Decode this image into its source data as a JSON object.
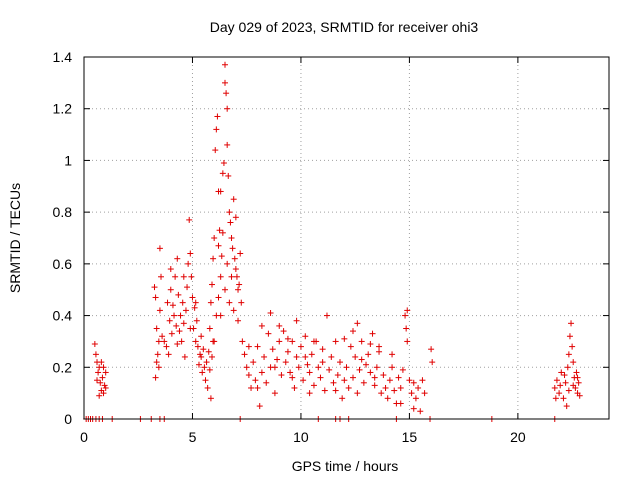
{
  "chart_data": {
    "type": "scatter",
    "title": "Day 029 of 2023, SRMTID for receiver ohi3",
    "xlabel": "GPS time / hours",
    "ylabel": "SRMTID / TECUs",
    "xlim": [
      0,
      24.2
    ],
    "ylim": [
      0,
      1.4
    ],
    "xticks": [
      0,
      5,
      10,
      15,
      20
    ],
    "yticks": [
      0,
      0.2,
      0.4,
      0.6,
      0.8,
      1,
      1.2,
      1.4
    ],
    "ytick_labels": [
      "0",
      "0.2",
      "0.4",
      "0.6",
      "0.8",
      "1",
      "1.2",
      "1.4"
    ],
    "grid": true,
    "marker": "plus",
    "series": [
      {
        "name": "SRMTID",
        "color": "#e00000",
        "points": [
          [
            0.1,
            0
          ],
          [
            0.2,
            0
          ],
          [
            0.3,
            0
          ],
          [
            0.4,
            0
          ],
          [
            0.55,
            0
          ],
          [
            0.7,
            0
          ],
          [
            0.85,
            0
          ],
          [
            1.3,
            0
          ],
          [
            2.6,
            0
          ],
          [
            3.1,
            0
          ],
          [
            3.5,
            0
          ],
          [
            3.7,
            0
          ],
          [
            7.2,
            0
          ],
          [
            10.8,
            0
          ],
          [
            11.6,
            0
          ],
          [
            11.8,
            0
          ],
          [
            12.2,
            0
          ],
          [
            14.4,
            0
          ],
          [
            15.95,
            0
          ],
          [
            18.8,
            0
          ],
          [
            21.7,
            0
          ],
          [
            0.5,
            0.29
          ],
          [
            0.55,
            0.25
          ],
          [
            0.6,
            0.22
          ],
          [
            0.65,
            0.18
          ],
          [
            0.7,
            0.2
          ],
          [
            0.75,
            0.14
          ],
          [
            0.8,
            0.11
          ],
          [
            0.85,
            0.16
          ],
          [
            0.9,
            0.2
          ],
          [
            0.95,
            0.13
          ],
          [
            1.0,
            0.18
          ],
          [
            0.6,
            0.15
          ],
          [
            0.7,
            0.09
          ],
          [
            0.8,
            0.22
          ],
          [
            0.9,
            0.1
          ],
          [
            1.0,
            0.12
          ],
          [
            3.25,
            0.51
          ],
          [
            3.3,
            0.47
          ],
          [
            3.35,
            0.35
          ],
          [
            3.4,
            0.25
          ],
          [
            3.45,
            0.3
          ],
          [
            3.5,
            0.66
          ],
          [
            3.5,
            0.42
          ],
          [
            3.55,
            0.55
          ],
          [
            3.6,
            0.32
          ],
          [
            3.3,
            0.16
          ],
          [
            3.35,
            0.22
          ],
          [
            3.45,
            0.2
          ],
          [
            3.7,
            0.3
          ],
          [
            3.8,
            0.28
          ],
          [
            3.85,
            0.45
          ],
          [
            3.9,
            0.25
          ],
          [
            3.95,
            0.38
          ],
          [
            4.0,
            0.5
          ],
          [
            4.05,
            0.33
          ],
          [
            4.1,
            0.44
          ],
          [
            4.2,
            0.55
          ],
          [
            4.25,
            0.36
          ],
          [
            4.3,
            0.29
          ],
          [
            4.35,
            0.48
          ],
          [
            4.4,
            0.34
          ],
          [
            4.45,
            0.4
          ],
          [
            4.5,
            0.3
          ],
          [
            4.55,
            0.45
          ],
          [
            4.6,
            0.37
          ],
          [
            4.65,
            0.24
          ],
          [
            4.7,
            0.42
          ],
          [
            4.75,
            0.51
          ],
          [
            4.8,
            0.6
          ],
          [
            4.85,
            0.77
          ],
          [
            4.9,
            0.64
          ],
          [
            4.95,
            0.55
          ],
          [
            5.0,
            0.47
          ],
          [
            5.05,
            0.35
          ],
          [
            5.1,
            0.43
          ],
          [
            5.15,
            0.3
          ],
          [
            5.2,
            0.38
          ],
          [
            5.25,
            0.28
          ],
          [
            5.3,
            0.21
          ],
          [
            5.35,
            0.25
          ],
          [
            5.4,
            0.32
          ],
          [
            5.45,
            0.18
          ],
          [
            5.5,
            0.27
          ],
          [
            5.55,
            0.2
          ],
          [
            5.6,
            0.15
          ],
          [
            5.65,
            0.22
          ],
          [
            5.7,
            0.12
          ],
          [
            5.75,
            0.26
          ],
          [
            5.8,
            0.19
          ],
          [
            5.85,
            0.08
          ],
          [
            5.9,
            0.24
          ],
          [
            5.95,
            0.3
          ],
          [
            4.0,
            0.58
          ],
          [
            4.15,
            0.4
          ],
          [
            4.3,
            0.62
          ],
          [
            4.6,
            0.55
          ],
          [
            4.9,
            0.35
          ],
          [
            5.15,
            0.45
          ],
          [
            5.4,
            0.24
          ],
          [
            5.8,
            0.35
          ],
          [
            5.85,
            0.45
          ],
          [
            5.9,
            0.52
          ],
          [
            5.95,
            0.62
          ],
          [
            6.0,
            0.7
          ],
          [
            6.05,
            1.04
          ],
          [
            6.1,
            1.12
          ],
          [
            6.15,
            1.17
          ],
          [
            6.2,
            0.88
          ],
          [
            6.25,
            0.73
          ],
          [
            6.3,
            0.55
          ],
          [
            6.35,
            0.63
          ],
          [
            6.4,
            0.95
          ],
          [
            6.45,
            0.99
          ],
          [
            6.5,
            1.37
          ],
          [
            6.5,
            1.3
          ],
          [
            6.55,
            1.26
          ],
          [
            6.6,
            1.2
          ],
          [
            6.65,
            0.94
          ],
          [
            6.7,
            0.8
          ],
          [
            6.75,
            0.76
          ],
          [
            6.8,
            0.7
          ],
          [
            6.85,
            0.66
          ],
          [
            6.9,
            0.85
          ],
          [
            6.95,
            0.62
          ],
          [
            7.0,
            0.58
          ],
          [
            7.05,
            0.55
          ],
          [
            7.1,
            0.5
          ],
          [
            7.15,
            0.52
          ],
          [
            7.2,
            0.64
          ],
          [
            7.25,
            0.45
          ],
          [
            6.2,
            0.67
          ],
          [
            6.3,
            0.4
          ],
          [
            6.4,
            0.72
          ],
          [
            6.6,
            0.6
          ],
          [
            6.8,
            0.55
          ],
          [
            7.0,
            0.78
          ],
          [
            7.1,
            0.38
          ],
          [
            6.0,
            0.3
          ],
          [
            6.1,
            0.4
          ],
          [
            6.2,
            0.47
          ],
          [
            6.5,
            0.5
          ],
          [
            6.7,
            0.45
          ],
          [
            6.9,
            0.42
          ],
          [
            6.3,
            0.88
          ],
          [
            6.6,
            1.06
          ],
          [
            7.3,
            0.3
          ],
          [
            7.4,
            0.25
          ],
          [
            7.5,
            0.2
          ],
          [
            7.6,
            0.17
          ],
          [
            7.7,
            0.12
          ],
          [
            7.8,
            0.22
          ],
          [
            7.9,
            0.15
          ],
          [
            8.0,
            0.28
          ],
          [
            8.1,
            0.05
          ],
          [
            8.2,
            0.18
          ],
          [
            8.3,
            0.24
          ],
          [
            8.4,
            0.14
          ],
          [
            8.5,
            0.33
          ],
          [
            8.6,
            0.2
          ],
          [
            8.7,
            0.27
          ],
          [
            8.8,
            0.1
          ],
          [
            8.9,
            0.23
          ],
          [
            9.0,
            0.3
          ],
          [
            9.1,
            0.17
          ],
          [
            9.2,
            0.34
          ],
          [
            9.3,
            0.22
          ],
          [
            9.4,
            0.26
          ],
          [
            9.5,
            0.18
          ],
          [
            9.6,
            0.3
          ],
          [
            9.7,
            0.12
          ],
          [
            9.8,
            0.24
          ],
          [
            9.9,
            0.2
          ],
          [
            10.0,
            0.28
          ],
          [
            10.1,
            0.15
          ],
          [
            10.2,
            0.32
          ],
          [
            10.3,
            0.21
          ],
          [
            10.4,
            0.18
          ],
          [
            10.5,
            0.25
          ],
          [
            10.6,
            0.13
          ],
          [
            10.7,
            0.3
          ],
          [
            10.8,
            0.2
          ],
          [
            10.9,
            0.16
          ],
          [
            11.0,
            0.27
          ],
          [
            11.1,
            0.11
          ],
          [
            11.2,
            0.4
          ],
          [
            11.3,
            0.19
          ],
          [
            11.4,
            0.24
          ],
          [
            11.5,
            0.14
          ],
          [
            11.6,
            0.3
          ],
          [
            11.7,
            0.17
          ],
          [
            11.8,
            0.22
          ],
          [
            11.9,
            0.08
          ],
          [
            12.0,
            0.15
          ],
          [
            12.1,
            0.2
          ],
          [
            12.2,
            0.12
          ],
          [
            12.3,
            0.28
          ],
          [
            12.4,
            0.16
          ],
          [
            12.5,
            0.24
          ],
          [
            12.6,
            0.37
          ],
          [
            12.7,
            0.19
          ],
          [
            12.8,
            0.23
          ],
          [
            12.9,
            0.14
          ],
          [
            13.0,
            0.21
          ],
          [
            13.1,
            0.25
          ],
          [
            13.2,
            0.18
          ],
          [
            13.3,
            0.33
          ],
          [
            13.4,
            0.13
          ],
          [
            13.5,
            0.2
          ],
          [
            13.6,
            0.26
          ],
          [
            13.7,
            0.1
          ],
          [
            13.8,
            0.17
          ],
          [
            13.9,
            0.12
          ],
          [
            14.0,
            0.08
          ],
          [
            14.1,
            0.15
          ],
          [
            14.2,
            0.2
          ],
          [
            14.3,
            0.11
          ],
          [
            14.4,
            0.06
          ],
          [
            14.5,
            0.16
          ],
          [
            14.6,
            0.12
          ],
          [
            14.7,
            0.19
          ],
          [
            14.8,
            0.4
          ],
          [
            14.85,
            0.35
          ],
          [
            14.9,
            0.42
          ],
          [
            14.9,
            0.3
          ],
          [
            15.0,
            0.15
          ],
          [
            15.1,
            0.1
          ],
          [
            15.2,
            0.14
          ],
          [
            15.3,
            0.08
          ],
          [
            15.4,
            0.12
          ],
          [
            15.5,
            0.03
          ],
          [
            15.6,
            0.15
          ],
          [
            15.7,
            0.1
          ],
          [
            16.0,
            0.27
          ],
          [
            16.05,
            0.22
          ],
          [
            8.2,
            0.36
          ],
          [
            8.6,
            0.41
          ],
          [
            9.0,
            0.36
          ],
          [
            9.4,
            0.31
          ],
          [
            9.8,
            0.38
          ],
          [
            10.2,
            0.24
          ],
          [
            10.6,
            0.3
          ],
          [
            11.0,
            0.22
          ],
          [
            12.0,
            0.31
          ],
          [
            12.4,
            0.34
          ],
          [
            12.8,
            0.3
          ],
          [
            13.2,
            0.29
          ],
          [
            13.6,
            0.28
          ],
          [
            14.2,
            0.25
          ],
          [
            7.6,
            0.28
          ],
          [
            8.0,
            0.12
          ],
          [
            8.8,
            0.2
          ],
          [
            9.6,
            0.16
          ],
          [
            10.4,
            0.1
          ],
          [
            11.6,
            0.11
          ],
          [
            12.6,
            0.1
          ],
          [
            13.4,
            0.16
          ],
          [
            14.6,
            0.06
          ],
          [
            15.2,
            0.04
          ],
          [
            21.7,
            0.12
          ],
          [
            21.8,
            0.15
          ],
          [
            21.9,
            0.1
          ],
          [
            22.0,
            0.18
          ],
          [
            22.1,
            0.08
          ],
          [
            22.2,
            0.14
          ],
          [
            22.25,
            0.05
          ],
          [
            22.3,
            0.2
          ],
          [
            22.35,
            0.25
          ],
          [
            22.4,
            0.32
          ],
          [
            22.45,
            0.37
          ],
          [
            22.5,
            0.28
          ],
          [
            22.55,
            0.22
          ],
          [
            22.6,
            0.16
          ],
          [
            22.65,
            0.12
          ],
          [
            22.7,
            0.18
          ],
          [
            22.75,
            0.1
          ],
          [
            22.8,
            0.14
          ],
          [
            22.85,
            0.09
          ],
          [
            21.75,
            0.08
          ],
          [
            21.95,
            0.13
          ],
          [
            22.15,
            0.17
          ],
          [
            22.35,
            0.11
          ],
          [
            22.55,
            0.13
          ],
          [
            22.75,
            0.16
          ]
        ]
      }
    ]
  }
}
